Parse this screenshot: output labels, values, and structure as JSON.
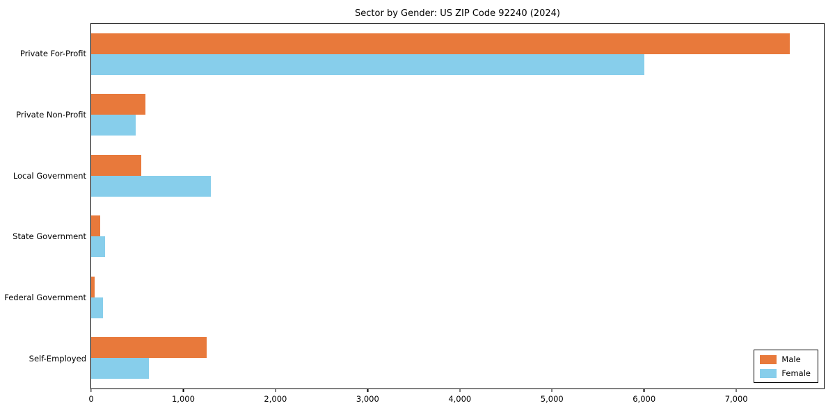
{
  "chart_data": {
    "type": "bar",
    "orientation": "horizontal",
    "title": "Sector by Gender: US ZIP Code 92240 (2024)",
    "categories": [
      "Private For-Profit",
      "Private Non-Profit",
      "Local Government",
      "State Government",
      "Federal Government",
      "Self-Employed"
    ],
    "series": [
      {
        "name": "Male",
        "color": "#e8793b",
        "values": [
          7580,
          590,
          545,
          100,
          40,
          1250
        ]
      },
      {
        "name": "Female",
        "color": "#87ceeb",
        "values": [
          6000,
          480,
          1300,
          150,
          130,
          630
        ]
      }
    ],
    "xlim": [
      0,
      7950
    ],
    "xticks": [
      0,
      1000,
      2000,
      3000,
      4000,
      5000,
      6000,
      7000
    ],
    "xlabel": "",
    "ylabel": "",
    "grid": false,
    "legend_position": "lower right"
  }
}
